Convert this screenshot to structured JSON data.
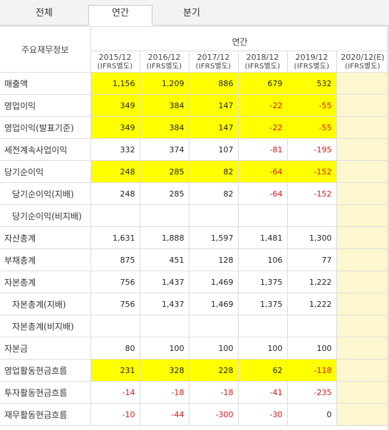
{
  "tabs": [
    {
      "label": "전체",
      "active": false
    },
    {
      "label": "연간",
      "active": true
    },
    {
      "label": "분기",
      "active": false
    }
  ],
  "header": {
    "corner_label": "주요재무정보",
    "group_label": "연간",
    "periods": [
      {
        "year": "2015/12",
        "basis": "(IFRS별도)"
      },
      {
        "year": "2016/12",
        "basis": "(IFRS별도)"
      },
      {
        "year": "2017/12",
        "basis": "(IFRS별도)"
      },
      {
        "year": "2018/12",
        "basis": "(IFRS별도)"
      },
      {
        "year": "2019/12",
        "basis": "(IFRS별도)"
      },
      {
        "year": "2020/12(E)",
        "basis": "(IFRS별도)"
      }
    ]
  },
  "rows": [
    {
      "label": "매출액",
      "indent": false,
      "highlight": true,
      "values": [
        "1,156",
        "1,209",
        "886",
        "679",
        "532",
        ""
      ]
    },
    {
      "label": "영업이익",
      "indent": false,
      "highlight": true,
      "values": [
        "349",
        "384",
        "147",
        "-22",
        "-55",
        ""
      ]
    },
    {
      "label": "영업이익(발표기준)",
      "indent": false,
      "highlight": true,
      "values": [
        "349",
        "384",
        "147",
        "-22",
        "-55",
        ""
      ]
    },
    {
      "label": "세전계속사업이익",
      "indent": false,
      "highlight": false,
      "values": [
        "332",
        "374",
        "107",
        "-81",
        "-195",
        ""
      ]
    },
    {
      "label": "당기순이익",
      "indent": false,
      "highlight": true,
      "values": [
        "248",
        "285",
        "82",
        "-64",
        "-152",
        ""
      ]
    },
    {
      "label": "당기순이익(지배)",
      "indent": true,
      "highlight": false,
      "values": [
        "248",
        "285",
        "82",
        "-64",
        "-152",
        ""
      ]
    },
    {
      "label": "당기순이익(비지배)",
      "indent": true,
      "highlight": false,
      "values": [
        "",
        "",
        "",
        "",
        "",
        ""
      ]
    },
    {
      "label": "자산총계",
      "indent": false,
      "highlight": false,
      "values": [
        "1,631",
        "1,888",
        "1,597",
        "1,481",
        "1,300",
        ""
      ]
    },
    {
      "label": "부채총계",
      "indent": false,
      "highlight": false,
      "values": [
        "875",
        "451",
        "128",
        "106",
        "77",
        ""
      ]
    },
    {
      "label": "자본총계",
      "indent": false,
      "highlight": false,
      "values": [
        "756",
        "1,437",
        "1,469",
        "1,375",
        "1,222",
        ""
      ]
    },
    {
      "label": "자본총계(지배)",
      "indent": true,
      "highlight": false,
      "values": [
        "756",
        "1,437",
        "1,469",
        "1,375",
        "1,222",
        ""
      ]
    },
    {
      "label": "자본총계(비지배)",
      "indent": true,
      "highlight": false,
      "values": [
        "",
        "",
        "",
        "",
        "",
        ""
      ]
    },
    {
      "label": "자본금",
      "indent": false,
      "highlight": false,
      "values": [
        "80",
        "100",
        "100",
        "100",
        "100",
        ""
      ]
    },
    {
      "label": "영업활동현금흐름",
      "indent": false,
      "highlight": true,
      "values": [
        "231",
        "328",
        "228",
        "62",
        "-118",
        ""
      ]
    },
    {
      "label": "투자활동현금흐름",
      "indent": false,
      "highlight": false,
      "values": [
        "-14",
        "-18",
        "-18",
        "-41",
        "-235",
        ""
      ]
    },
    {
      "label": "재무활동현금흐름",
      "indent": false,
      "highlight": false,
      "values": [
        "-10",
        "-44",
        "-300",
        "-30",
        "0",
        ""
      ]
    }
  ],
  "colors": {
    "highlight": "#ffff00",
    "negative": "#d21818",
    "estimate_column": "#fdf7cf"
  }
}
